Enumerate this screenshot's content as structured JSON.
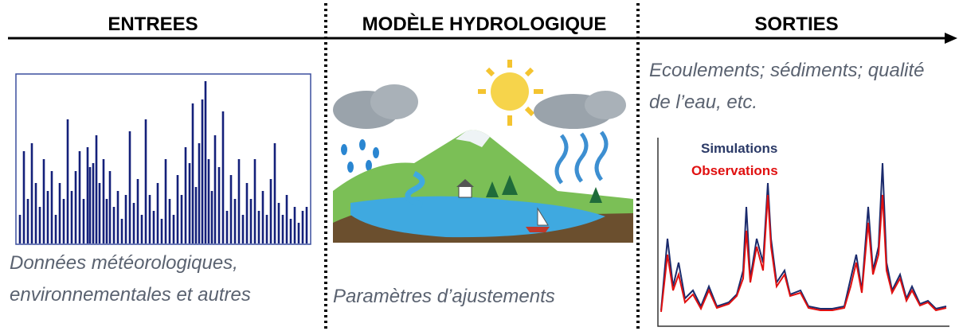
{
  "header": {
    "inputs": "ENTREES",
    "model": "MODÈLE HYDROLOGIQUE",
    "outputs": "SORTIES"
  },
  "inputs": {
    "caption": [
      "Données météorologiques,",
      "environnementales et autres"
    ]
  },
  "model": {
    "caption": "Paramètres d’ajustements"
  },
  "outputs": {
    "caption": [
      "Ecoulements; sédiments; qualité",
      "de l’eau, etc."
    ],
    "legend": [
      "Simulations",
      "Observations"
    ]
  }
}
